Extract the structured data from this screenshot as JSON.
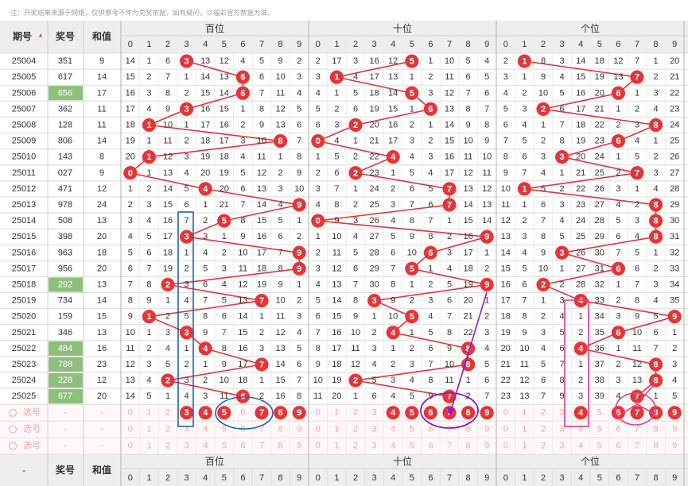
{
  "notice": "注：开奖结果来源于网络，仅供参考不作为兑奖依据。如有疑问，以福彩官方数据为准。",
  "header": {
    "col_period": "期号",
    "sort_icon": "▲",
    "col_number": "奖号",
    "col_sum": "和值",
    "groups": [
      "百位",
      "十位",
      "个位"
    ],
    "digits": [
      "0",
      "1",
      "2",
      "3",
      "4",
      "5",
      "6",
      "7",
      "8",
      "9"
    ]
  },
  "colors": {
    "ball": "#e53538",
    "miss_text": "#333333",
    "highlight_number": "#8ebf7b",
    "header_bg": "#eeeeee",
    "pick_text": "#f2a6a6",
    "blue_mark": "#1f63b5",
    "purple_mark": "#8a1ccf",
    "pink_mark": "#ea3c80"
  },
  "rows": [
    {
      "period": "25004",
      "number": "351",
      "sum": "9",
      "hl": false,
      "h": [
        14,
        1,
        6,
        null,
        13,
        12,
        4,
        5,
        9,
        2
      ],
      "t": [
        2,
        17,
        3,
        16,
        12,
        null,
        1,
        10,
        5,
        4
      ],
      "u": [
        2,
        null,
        8,
        3,
        14,
        18,
        12,
        7,
        1,
        20
      ]
    },
    {
      "period": "25005",
      "number": "617",
      "sum": "14",
      "hl": false,
      "h": [
        15,
        2,
        7,
        1,
        14,
        13,
        null,
        6,
        10,
        3
      ],
      "t": [
        3,
        null,
        4,
        17,
        13,
        1,
        2,
        11,
        6,
        5
      ],
      "u": [
        3,
        1,
        9,
        4,
        15,
        19,
        13,
        null,
        2,
        21
      ]
    },
    {
      "period": "25006",
      "number": "656",
      "sum": "17",
      "hl": true,
      "h": [
        16,
        3,
        8,
        2,
        15,
        14,
        null,
        7,
        11,
        4
      ],
      "t": [
        4,
        1,
        5,
        18,
        14,
        null,
        3,
        12,
        7,
        6
      ],
      "u": [
        4,
        2,
        10,
        5,
        16,
        20,
        null,
        1,
        3,
        22
      ]
    },
    {
      "period": "25007",
      "number": "362",
      "sum": "11",
      "hl": false,
      "h": [
        17,
        4,
        9,
        null,
        16,
        15,
        1,
        8,
        12,
        5
      ],
      "t": [
        5,
        2,
        6,
        19,
        15,
        1,
        null,
        13,
        8,
        7
      ],
      "u": [
        5,
        3,
        null,
        6,
        17,
        21,
        1,
        2,
        4,
        23
      ]
    },
    {
      "period": "25008",
      "number": "128",
      "sum": "11",
      "hl": false,
      "h": [
        18,
        null,
        10,
        1,
        17,
        16,
        2,
        9,
        13,
        6
      ],
      "t": [
        6,
        3,
        null,
        20,
        16,
        2,
        1,
        14,
        9,
        8
      ],
      "u": [
        6,
        4,
        1,
        7,
        18,
        22,
        2,
        3,
        null,
        24
      ]
    },
    {
      "period": "25009",
      "number": "806",
      "sum": "14",
      "hl": false,
      "h": [
        19,
        1,
        11,
        2,
        18,
        17,
        3,
        10,
        null,
        7
      ],
      "t": [
        null,
        4,
        1,
        21,
        17,
        3,
        2,
        15,
        10,
        9
      ],
      "u": [
        7,
        5,
        2,
        8,
        19,
        23,
        null,
        4,
        1,
        25
      ]
    },
    {
      "period": "25010",
      "number": "143",
      "sum": "8",
      "hl": false,
      "h": [
        20,
        null,
        12,
        3,
        19,
        18,
        4,
        11,
        1,
        8
      ],
      "t": [
        1,
        5,
        2,
        22,
        null,
        4,
        3,
        16,
        11,
        10
      ],
      "u": [
        8,
        6,
        3,
        null,
        20,
        24,
        1,
        5,
        2,
        26
      ]
    },
    {
      "period": "25011",
      "number": "027",
      "sum": "9",
      "hl": false,
      "h": [
        null,
        1,
        13,
        4,
        20,
        19,
        5,
        12,
        2,
        9
      ],
      "t": [
        2,
        6,
        null,
        23,
        1,
        5,
        4,
        17,
        12,
        11
      ],
      "u": [
        9,
        7,
        4,
        1,
        21,
        25,
        2,
        null,
        3,
        27
      ]
    },
    {
      "period": "25012",
      "number": "471",
      "sum": "12",
      "hl": false,
      "h": [
        1,
        2,
        14,
        5,
        null,
        20,
        6,
        13,
        3,
        10
      ],
      "t": [
        3,
        7,
        1,
        24,
        2,
        6,
        5,
        null,
        13,
        12
      ],
      "u": [
        10,
        null,
        5,
        2,
        22,
        26,
        3,
        1,
        4,
        28
      ]
    },
    {
      "period": "25013",
      "number": "978",
      "sum": "24",
      "hl": false,
      "h": [
        2,
        3,
        15,
        6,
        1,
        21,
        7,
        14,
        4,
        null
      ],
      "t": [
        4,
        8,
        2,
        25,
        3,
        7,
        6,
        null,
        14,
        13
      ],
      "u": [
        11,
        1,
        6,
        3,
        23,
        27,
        4,
        2,
        null,
        29
      ]
    },
    {
      "period": "25014",
      "number": "508",
      "sum": "13",
      "hl": false,
      "h": [
        3,
        4,
        16,
        7,
        2,
        null,
        8,
        15,
        5,
        1
      ],
      "t": [
        null,
        9,
        3,
        26,
        4,
        8,
        7,
        1,
        15,
        14
      ],
      "u": [
        12,
        2,
        7,
        4,
        24,
        28,
        5,
        3,
        null,
        30
      ]
    },
    {
      "period": "25015",
      "number": "398",
      "sum": "20",
      "hl": false,
      "h": [
        4,
        5,
        17,
        null,
        3,
        1,
        9,
        16,
        6,
        2
      ],
      "t": [
        1,
        10,
        4,
        27,
        5,
        9,
        8,
        2,
        16,
        null
      ],
      "u": [
        13,
        3,
        8,
        5,
        25,
        29,
        6,
        4,
        null,
        31
      ]
    },
    {
      "period": "25016",
      "number": "963",
      "sum": "18",
      "hl": false,
      "h": [
        5,
        6,
        18,
        1,
        4,
        2,
        10,
        17,
        7,
        null
      ],
      "t": [
        2,
        11,
        5,
        28,
        6,
        10,
        null,
        3,
        17,
        1
      ],
      "u": [
        14,
        4,
        9,
        null,
        26,
        30,
        7,
        5,
        1,
        32
      ]
    },
    {
      "period": "25017",
      "number": "956",
      "sum": "20",
      "hl": false,
      "h": [
        6,
        7,
        19,
        2,
        5,
        3,
        11,
        18,
        8,
        null
      ],
      "t": [
        3,
        12,
        6,
        29,
        7,
        null,
        1,
        4,
        18,
        2
      ],
      "u": [
        15,
        5,
        10,
        1,
        27,
        31,
        null,
        6,
        2,
        33
      ]
    },
    {
      "period": "25018",
      "number": "292",
      "sum": "13",
      "hl": true,
      "h": [
        7,
        8,
        null,
        3,
        6,
        4,
        12,
        19,
        9,
        1
      ],
      "t": [
        4,
        13,
        7,
        30,
        8,
        1,
        2,
        5,
        19,
        null
      ],
      "u": [
        16,
        6,
        null,
        2,
        28,
        32,
        1,
        7,
        3,
        34
      ]
    },
    {
      "period": "25019",
      "number": "734",
      "sum": "14",
      "hl": false,
      "h": [
        8,
        9,
        1,
        4,
        7,
        5,
        13,
        null,
        10,
        2
      ],
      "t": [
        5,
        14,
        8,
        null,
        9,
        2,
        3,
        6,
        20,
        1
      ],
      "u": [
        17,
        7,
        1,
        3,
        null,
        33,
        2,
        8,
        4,
        35
      ]
    },
    {
      "period": "25020",
      "number": "159",
      "sum": "15",
      "hl": false,
      "h": [
        9,
        null,
        2,
        5,
        8,
        6,
        14,
        1,
        11,
        3
      ],
      "t": [
        6,
        15,
        9,
        1,
        10,
        null,
        4,
        7,
        21,
        2
      ],
      "u": [
        18,
        8,
        2,
        4,
        1,
        34,
        3,
        9,
        5,
        null
      ]
    },
    {
      "period": "25021",
      "number": "346",
      "sum": "13",
      "hl": false,
      "h": [
        10,
        1,
        3,
        null,
        9,
        7,
        15,
        2,
        12,
        4
      ],
      "t": [
        7,
        16,
        10,
        2,
        null,
        1,
        5,
        8,
        22,
        3
      ],
      "u": [
        19,
        9,
        3,
        5,
        2,
        35,
        null,
        10,
        6,
        1
      ]
    },
    {
      "period": "25022",
      "number": "484",
      "sum": "16",
      "hl": true,
      "h": [
        11,
        2,
        4,
        1,
        null,
        8,
        16,
        3,
        13,
        5
      ],
      "t": [
        8,
        17,
        11,
        3,
        1,
        2,
        6,
        9,
        null,
        4
      ],
      "u": [
        20,
        10,
        4,
        6,
        null,
        36,
        1,
        11,
        7,
        2
      ]
    },
    {
      "period": "25023",
      "number": "788",
      "sum": "23",
      "hl": true,
      "h": [
        12,
        3,
        5,
        2,
        1,
        9,
        17,
        null,
        14,
        6
      ],
      "t": [
        9,
        18,
        12,
        4,
        2,
        3,
        7,
        10,
        null,
        5
      ],
      "u": [
        21,
        11,
        5,
        7,
        1,
        37,
        2,
        12,
        null,
        3
      ]
    },
    {
      "period": "25024",
      "number": "228",
      "sum": "12",
      "hl": true,
      "h": [
        13,
        4,
        null,
        3,
        2,
        10,
        18,
        1,
        15,
        7
      ],
      "t": [
        10,
        19,
        null,
        5,
        3,
        4,
        8,
        11,
        1,
        6
      ],
      "u": [
        22,
        12,
        6,
        8,
        2,
        38,
        3,
        13,
        null,
        4
      ]
    },
    {
      "period": "25025",
      "number": "677",
      "sum": "20",
      "hl": true,
      "h": [
        14,
        5,
        1,
        4,
        3,
        11,
        null,
        2,
        16,
        8
      ],
      "t": [
        11,
        20,
        1,
        6,
        4,
        5,
        9,
        null,
        2,
        7
      ],
      "u": [
        23,
        13,
        7,
        9,
        3,
        39,
        4,
        null,
        1,
        5
      ]
    }
  ],
  "picks": {
    "labels": [
      "选号",
      "选号",
      "选号"
    ],
    "dash": "-",
    "marked": [
      [
        3,
        4,
        5,
        7,
        8,
        9
      ],
      [
        4,
        5,
        6,
        7,
        8,
        9
      ],
      [
        4,
        6,
        7,
        8,
        9
      ]
    ]
  },
  "footer": {
    "col_period": "-",
    "col_number": "奖号",
    "col_sum": "和值"
  }
}
